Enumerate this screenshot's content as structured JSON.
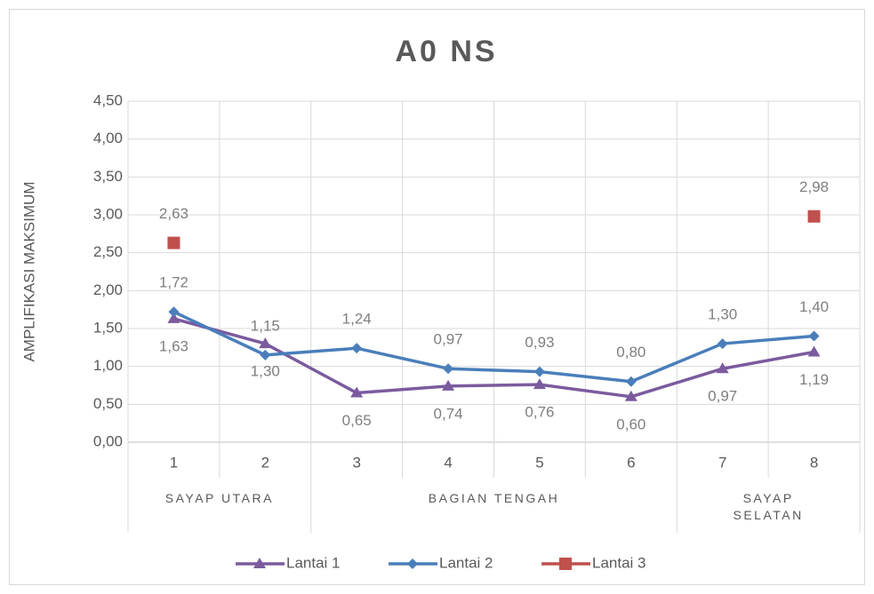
{
  "chart_data": {
    "type": "line",
    "title": "A0 NS",
    "y_label": "AMPLIFIKASI MAKSIMUM",
    "categories": [
      "1",
      "2",
      "3",
      "4",
      "5",
      "6",
      "7",
      "8"
    ],
    "groups": [
      "SAYAP UTARA",
      "SAYAP UTARA",
      "BAGIAN TENGAH",
      "BAGIAN TENGAH",
      "BAGIAN TENGAH",
      "BAGIAN TENGAH",
      "SAYAP SELATAN",
      "SAYAP SELATAN"
    ],
    "ylim": [
      0,
      4.5
    ],
    "yticks": [
      {
        "value": 0,
        "label": "0,00"
      },
      {
        "value": 0.5,
        "label": "0,50"
      },
      {
        "value": 1,
        "label": "1,00"
      },
      {
        "value": 1.5,
        "label": "1,50"
      },
      {
        "value": 2,
        "label": "2,00"
      },
      {
        "value": 2.5,
        "label": "2,50"
      },
      {
        "value": 3,
        "label": "3,00"
      },
      {
        "value": 3.5,
        "label": "3,50"
      },
      {
        "value": 4,
        "label": "4,00"
      },
      {
        "value": 4.5,
        "label": "4,50"
      }
    ],
    "grid": true,
    "legend": "bottom",
    "series": [
      {
        "name": "Lantai 1",
        "color": "#7b5b9e",
        "marker": "triangle",
        "line": true,
        "label_position": "below",
        "values": [
          1.63,
          1.3,
          0.65,
          0.74,
          0.76,
          0.6,
          0.97,
          1.19
        ],
        "value_labels": [
          "1,63",
          "1,30",
          "0,65",
          "0,74",
          "0,76",
          "0,60",
          "0,97",
          "1,19"
        ]
      },
      {
        "name": "Lantai 2",
        "color": "#4a7ebb",
        "marker": "diamond",
        "line": true,
        "label_position": "above",
        "values": [
          1.72,
          1.15,
          1.24,
          0.97,
          0.93,
          0.8,
          1.3,
          1.4
        ],
        "value_labels": [
          "1,72",
          "1,15",
          "1,24",
          "0,97",
          "0,93",
          "0,80",
          "1,30",
          "1,40"
        ]
      },
      {
        "name": "Lantai 3",
        "color": "#c0504d",
        "marker": "square",
        "line": false,
        "label_position": "above",
        "values": [
          2.63,
          null,
          null,
          null,
          null,
          null,
          null,
          2.98
        ],
        "value_labels": [
          "2,63",
          null,
          null,
          null,
          null,
          null,
          null,
          "2,98"
        ]
      }
    ]
  }
}
